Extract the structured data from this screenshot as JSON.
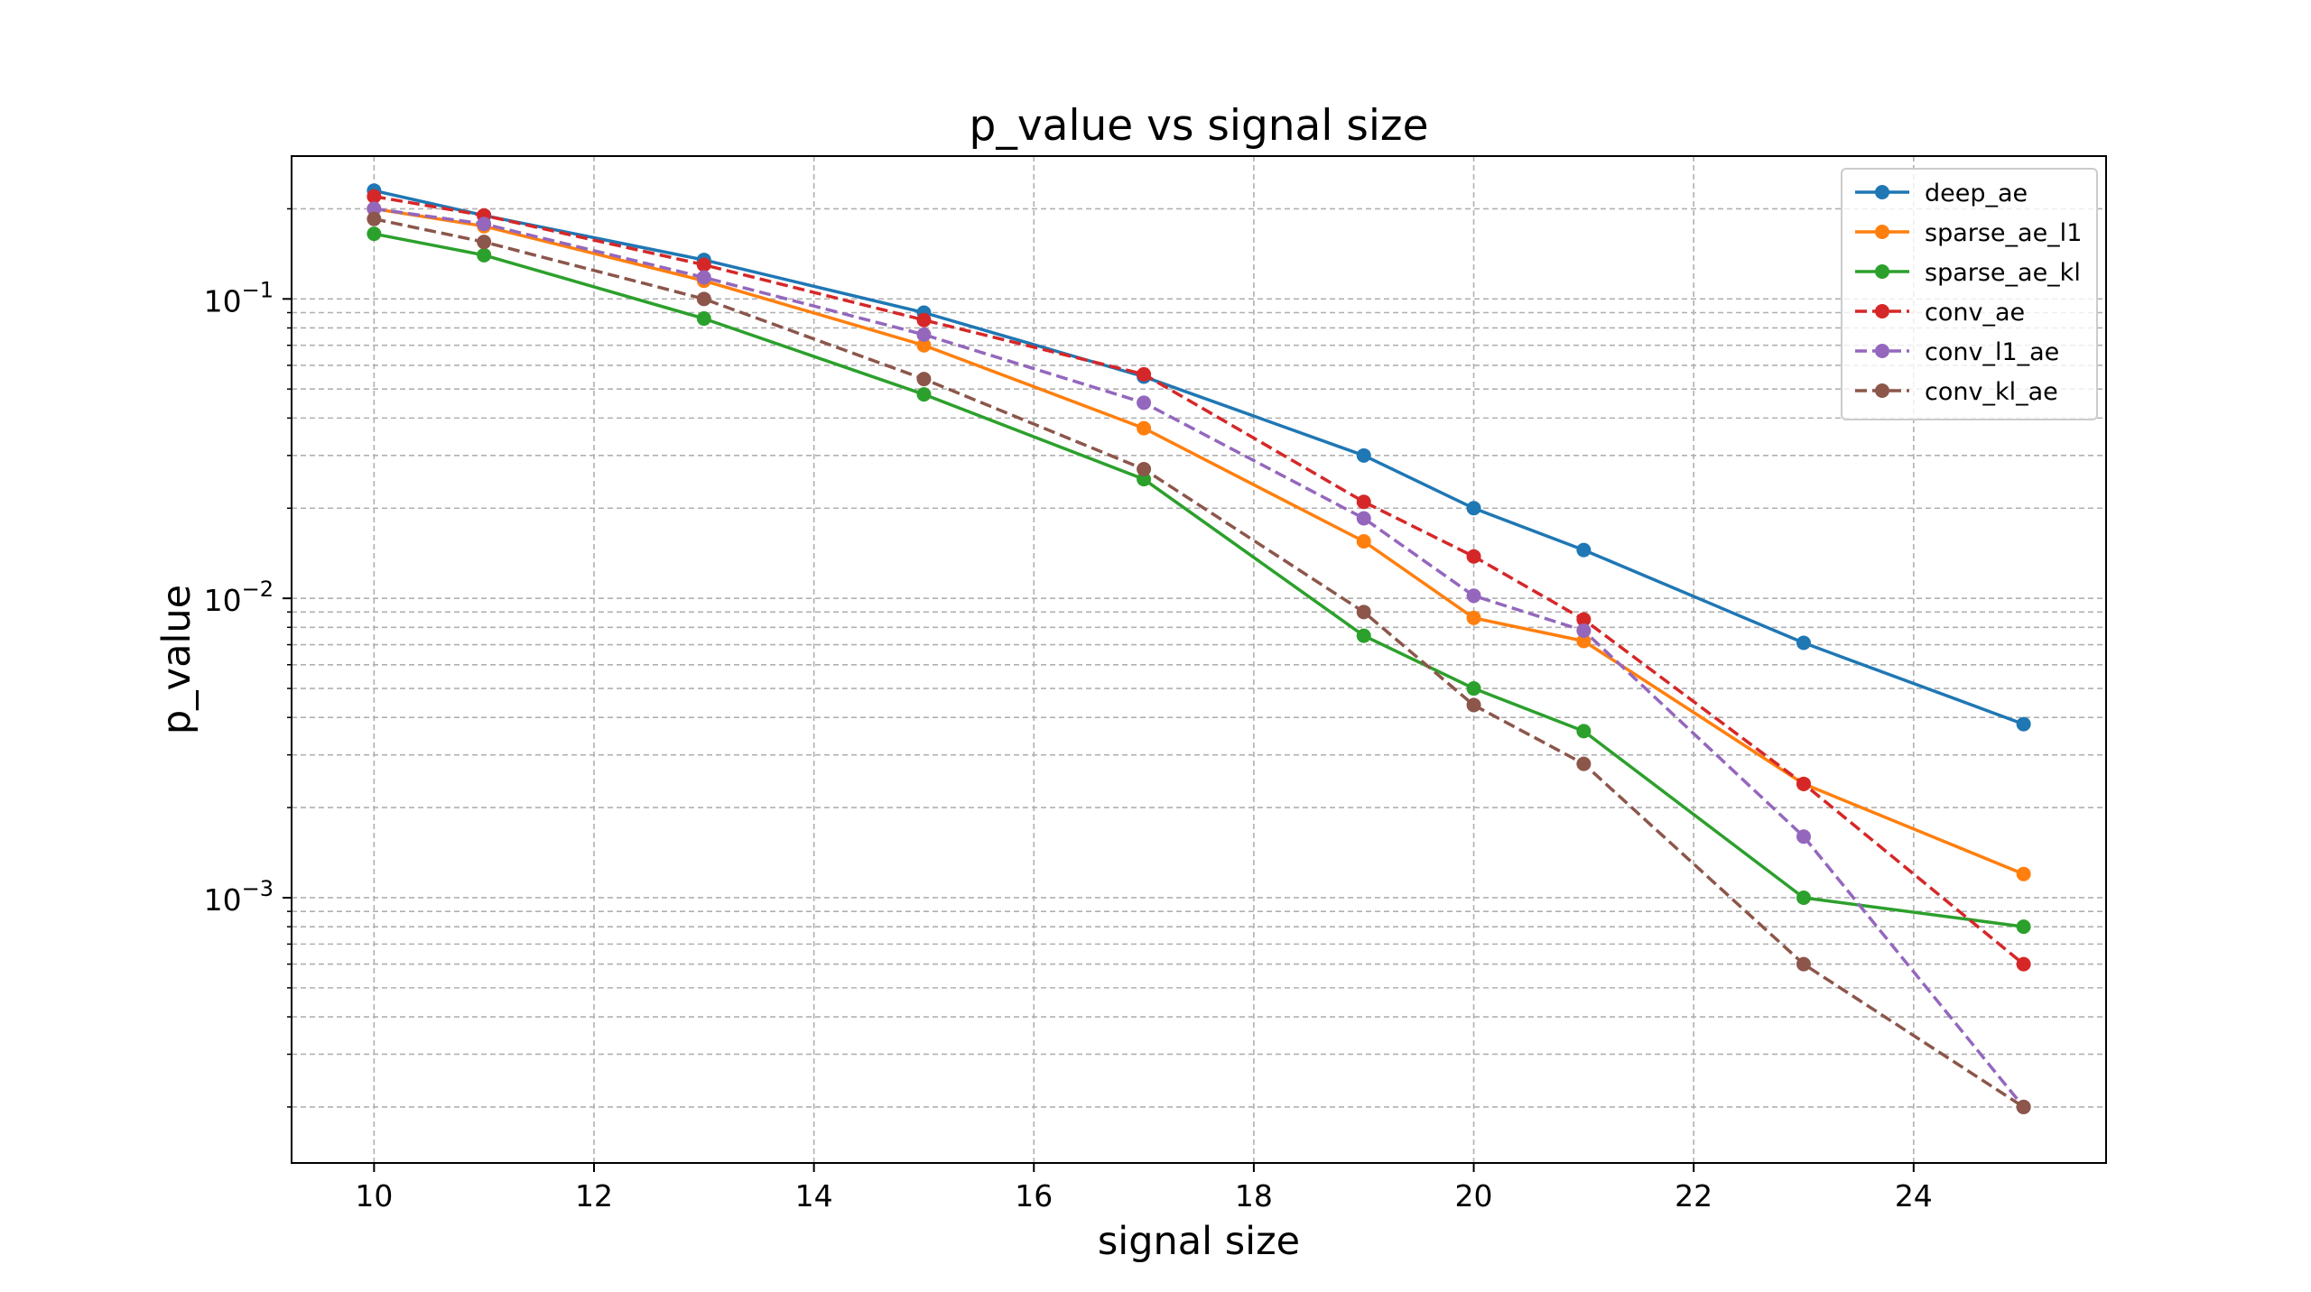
{
  "chart_data": {
    "type": "line",
    "title": "p_value vs signal size",
    "xlabel": "signal size",
    "ylabel": "p_value",
    "xlim": [
      9.25,
      25.75
    ],
    "ylim": [
      0.00013,
      0.3
    ],
    "yscale": "log",
    "grid": true,
    "legend_position": "top-right",
    "x_ticks": [
      {
        "value": 10,
        "label": "10"
      },
      {
        "value": 12,
        "label": "12"
      },
      {
        "value": 14,
        "label": "14"
      },
      {
        "value": 16,
        "label": "16"
      },
      {
        "value": 18,
        "label": "18"
      },
      {
        "value": 20,
        "label": "20"
      },
      {
        "value": 22,
        "label": "22"
      },
      {
        "value": 24,
        "label": "24"
      }
    ],
    "y_ticks": [
      {
        "value": 0.1,
        "base": "10",
        "exp": "−1"
      },
      {
        "value": 0.01,
        "base": "10",
        "exp": "−2"
      },
      {
        "value": 0.001,
        "base": "10",
        "exp": "−3"
      }
    ],
    "series": [
      {
        "name": "deep_ae",
        "color": "#1f77b4",
        "dash": "solid",
        "x": [
          10,
          11,
          13,
          15,
          17,
          19,
          20,
          21,
          23,
          25
        ],
        "y": [
          0.23,
          0.19,
          0.135,
          0.09,
          0.055,
          0.03,
          0.02,
          0.0145,
          0.0071,
          0.0038
        ]
      },
      {
        "name": "sparse_ae_l1",
        "color": "#ff7f0e",
        "dash": "solid",
        "x": [
          10,
          11,
          13,
          15,
          17,
          19,
          20,
          21,
          23,
          25
        ],
        "y": [
          0.2,
          0.175,
          0.115,
          0.07,
          0.037,
          0.0155,
          0.0086,
          0.0072,
          0.0024,
          0.0012
        ]
      },
      {
        "name": "sparse_ae_kl",
        "color": "#2ca02c",
        "dash": "solid",
        "x": [
          10,
          11,
          13,
          15,
          17,
          19,
          20,
          21,
          23,
          25
        ],
        "y": [
          0.165,
          0.14,
          0.086,
          0.048,
          0.025,
          0.0075,
          0.005,
          0.0036,
          0.001,
          0.0008
        ]
      },
      {
        "name": "conv_ae",
        "color": "#d62728",
        "dash": "dashed",
        "x": [
          10,
          11,
          13,
          15,
          17,
          19,
          20,
          21,
          23,
          25
        ],
        "y": [
          0.22,
          0.19,
          0.13,
          0.085,
          0.056,
          0.021,
          0.0138,
          0.0085,
          0.0024,
          0.0006
        ]
      },
      {
        "name": "conv_l1_ae",
        "color": "#9467bd",
        "dash": "dashed",
        "x": [
          10,
          11,
          13,
          15,
          17,
          19,
          20,
          21,
          23,
          25
        ],
        "y": [
          0.2,
          0.178,
          0.118,
          0.076,
          0.045,
          0.0185,
          0.0102,
          0.0078,
          0.0016,
          0.0002
        ]
      },
      {
        "name": "conv_kl_ae",
        "color": "#8c564b",
        "dash": "dashed",
        "x": [
          10,
          11,
          13,
          15,
          17,
          19,
          20,
          21,
          23,
          25
        ],
        "y": [
          0.185,
          0.155,
          0.1,
          0.054,
          0.027,
          0.009,
          0.0044,
          0.0028,
          0.0006,
          0.0002
        ]
      }
    ]
  }
}
